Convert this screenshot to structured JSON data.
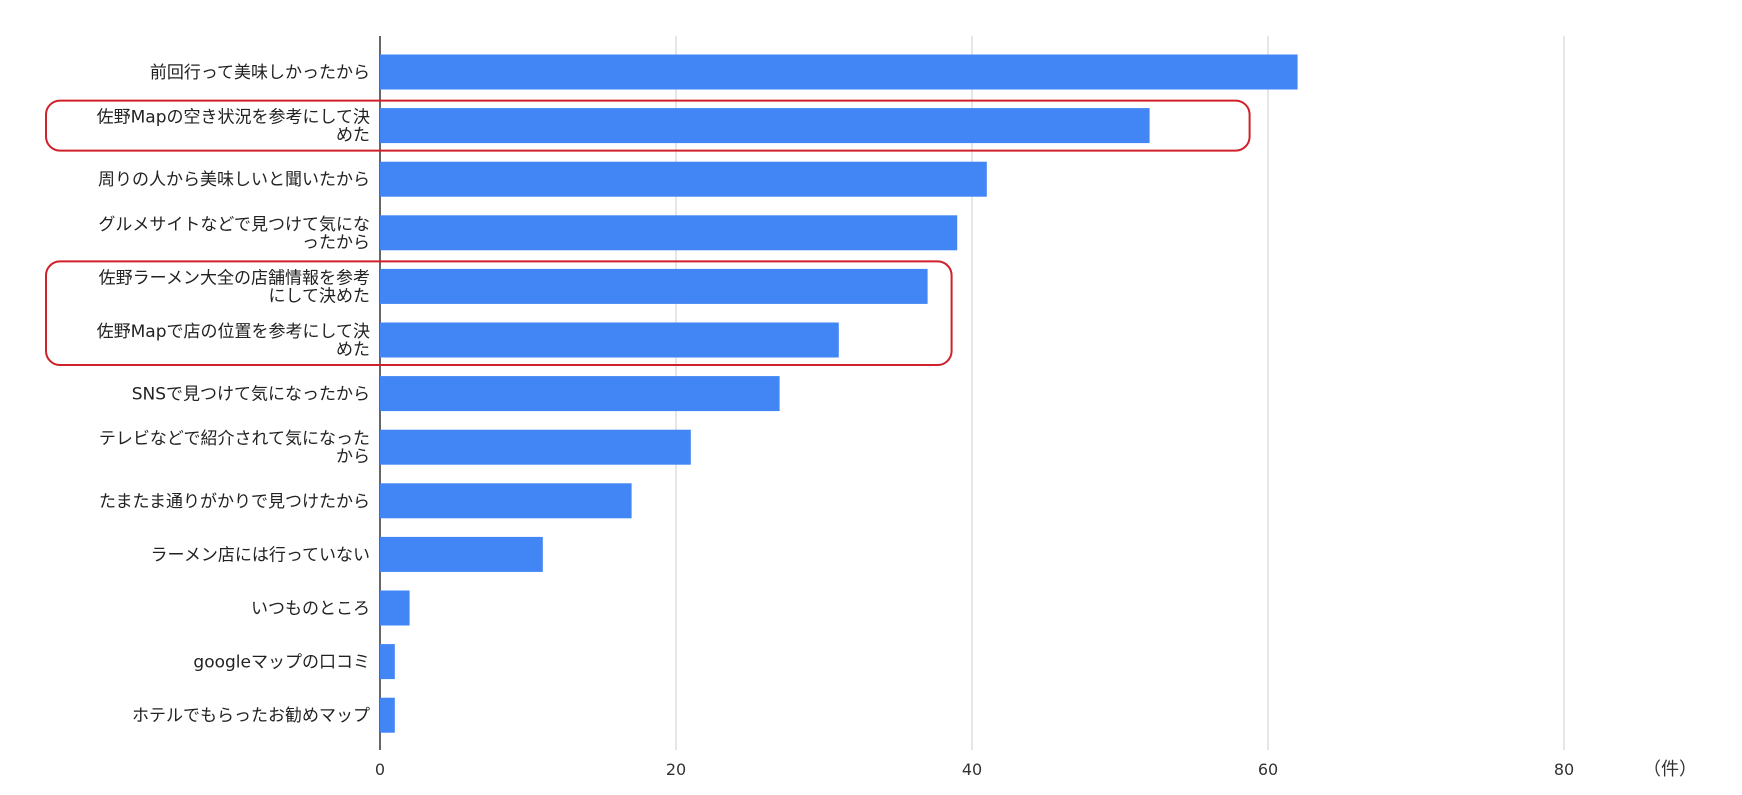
{
  "colors": {
    "bar": "#4285f4",
    "grid": "#cccccc",
    "axis": "#333333",
    "highlight": "#d0212a",
    "text": "#222222"
  },
  "chart_data": {
    "type": "bar",
    "orientation": "horizontal",
    "title": "",
    "xlabel": "",
    "ylabel": "",
    "unit_label": "（件）",
    "xlim": [
      0,
      80
    ],
    "xticks": [
      0,
      20,
      40,
      60,
      80
    ],
    "grid": true,
    "legend": "none",
    "categories": [
      "前回行って美味しかったから",
      "佐野Mapの空き状況を参考にして決めた",
      "周りの人から美味しいと聞いたから",
      "グルメサイトなどで見つけて気になったから",
      "佐野ラーメン大全の店舗情報を参考にして決めた",
      "佐野Mapで店の位置を参考にして決めた",
      "SNSで見つけて気になったから",
      "テレビなどで紹介されて気になったから",
      "たまたま通りがかりで見つけたから",
      "ラーメン店には行っていない",
      "いつものところ",
      "googleマップの口コミ",
      "ホテルでもらったお勧めマップ"
    ],
    "label_lines": [
      [
        "前回行って美味しかったから"
      ],
      [
        "佐野Mapの空き状況を参考にして決",
        "めた"
      ],
      [
        "周りの人から美味しいと聞いたから"
      ],
      [
        "グルメサイトなどで見つけて気にな",
        "ったから"
      ],
      [
        "佐野ラーメン大全の店舗情報を参考",
        "にして決めた"
      ],
      [
        "佐野Mapで店の位置を参考にして決",
        "めた"
      ],
      [
        "SNSで見つけて気になったから"
      ],
      [
        "テレビなどで紹介されて気になった",
        "から"
      ],
      [
        "たまたま通りがかりで見つけたから"
      ],
      [
        "ラーメン店には行っていない"
      ],
      [
        "いつものところ"
      ],
      [
        "googleマップの口コミ"
      ],
      [
        "ホテルでもらったお勧めマップ"
      ]
    ],
    "values": [
      62,
      52,
      41,
      39,
      37,
      31,
      27,
      21,
      17,
      11,
      2,
      1,
      1
    ],
    "highlights": [
      {
        "categories": [
          1
        ],
        "color": "#d0212a"
      },
      {
        "categories": [
          4,
          5
        ],
        "color": "#d0212a"
      }
    ]
  }
}
